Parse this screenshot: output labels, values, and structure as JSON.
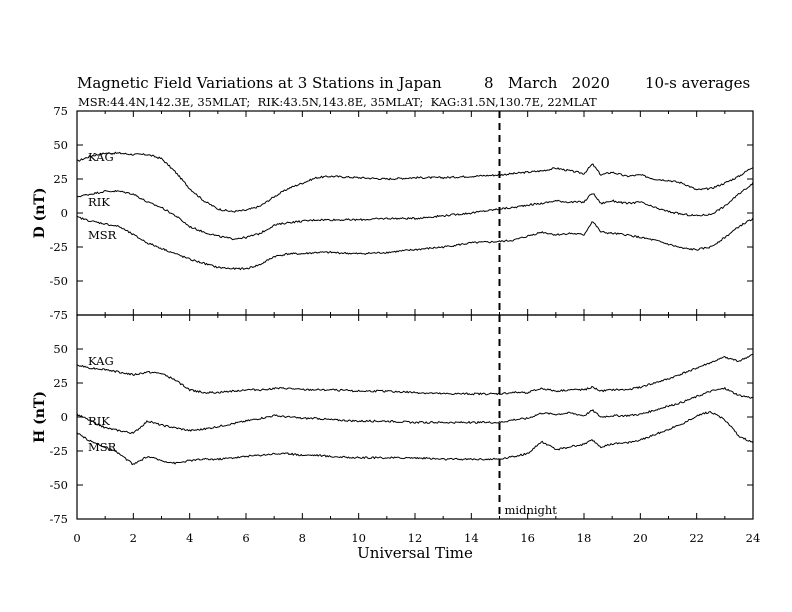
{
  "chart_data": {
    "type": "line",
    "title": "Magnetic Field Variations at 3 Stations in Japan",
    "date_text": "8   March   2020",
    "averaging": "10-s averages",
    "stations_text": "MSR:44.4N,142.3E, 35MLAT;  RIK:43.5N,143.8E, 35MLAT;  KAG:31.5N,130.7E, 22MLAT",
    "xlabel": "Universal Time",
    "xlim": [
      0,
      24
    ],
    "xticks": [
      0,
      2,
      4,
      6,
      8,
      10,
      12,
      14,
      16,
      18,
      20,
      22,
      24
    ],
    "midnight": {
      "x": 15,
      "label": "midnight"
    },
    "panels": [
      {
        "ylabel": "D (nT)",
        "ylim": [
          -75,
          75
        ],
        "yticks": [
          75,
          50,
          25,
          0,
          -25,
          -50,
          -75
        ],
        "series": [
          {
            "name": "KAG",
            "label_x": 0.25,
            "label_y": 41,
            "x": [
              0,
              0.5,
              1,
              1.5,
              2,
              2.5,
              3,
              3.5,
              4,
              4.5,
              5,
              5.5,
              6,
              6.5,
              7,
              7.5,
              8,
              8.5,
              9,
              10,
              11,
              12,
              13,
              14,
              15,
              15.5,
              16,
              16.5,
              17,
              17.5,
              18,
              18.3,
              18.6,
              19,
              19.5,
              20,
              20.5,
              21,
              21.5,
              22,
              22.5,
              23,
              23.5,
              24
            ],
            "y": [
              38,
              42,
              44,
              44,
              43,
              43,
              40,
              30,
              18,
              9,
              3,
              1,
              2,
              5,
              12,
              18,
              22,
              26,
              27,
              26,
              25,
              26,
              26,
              27,
              28,
              29,
              30,
              31,
              33,
              31,
              29,
              36,
              28,
              30,
              27,
              28,
              25,
              24,
              22,
              17,
              18,
              22,
              27,
              34
            ]
          },
          {
            "name": "RIK",
            "label_x": 0.25,
            "label_y": 8,
            "x": [
              0,
              0.5,
              1,
              1.5,
              2,
              2.5,
              3,
              3.5,
              4,
              4.5,
              5,
              5.5,
              6,
              6.5,
              7,
              7.5,
              8,
              8.5,
              9,
              10,
              11,
              12,
              13,
              14,
              15,
              15.5,
              16,
              16.5,
              17,
              17.5,
              18,
              18.3,
              18.6,
              19,
              19.5,
              20,
              20.5,
              21,
              21.5,
              22,
              22.5,
              23,
              23.5,
              24
            ],
            "y": [
              12,
              14,
              16,
              16,
              14,
              8,
              4,
              -2,
              -10,
              -14,
              -17,
              -19,
              -18,
              -15,
              -9,
              -7,
              -6,
              -5,
              -5,
              -5,
              -4,
              -4,
              -2,
              0,
              3,
              4,
              6,
              7,
              9,
              8,
              8,
              15,
              7,
              9,
              7,
              8,
              4,
              1,
              -1,
              -2,
              -1,
              5,
              14,
              22
            ]
          },
          {
            "name": "MSR",
            "label_x": 0.25,
            "label_y": -16,
            "x": [
              0,
              0.5,
              1,
              1.5,
              2,
              2.5,
              3,
              3.5,
              4,
              4.5,
              5,
              5.5,
              6,
              6.5,
              7,
              7.5,
              8,
              8.5,
              9,
              10,
              11,
              12,
              13,
              14,
              15,
              15.5,
              16,
              16.5,
              17,
              17.5,
              18,
              18.3,
              18.6,
              19,
              19.5,
              20,
              20.5,
              21,
              21.5,
              22,
              22.5,
              23,
              23.5,
              24
            ],
            "y": [
              -3,
              -6,
              -8,
              -10,
              -16,
              -22,
              -26,
              -30,
              -34,
              -37,
              -40,
              -41,
              -41,
              -38,
              -32,
              -30,
              -30,
              -29,
              -29,
              -30,
              -29,
              -27,
              -25,
              -22,
              -21,
              -20,
              -17,
              -14,
              -16,
              -15,
              -16,
              -6,
              -14,
              -15,
              -16,
              -18,
              -20,
              -23,
              -26,
              -27,
              -25,
              -18,
              -10,
              -4
            ]
          }
        ]
      },
      {
        "ylabel": "H (nT)",
        "ylim": [
          -75,
          75
        ],
        "yticks": [
          75,
          50,
          25,
          0,
          -25,
          -50,
          -75
        ],
        "series": [
          {
            "name": "KAG",
            "label_x": 0.25,
            "label_y": 41,
            "x": [
              0,
              0.5,
              1,
              1.5,
              2,
              2.5,
              3,
              3.5,
              4,
              4.5,
              5,
              5.5,
              6,
              6.5,
              7,
              7.5,
              8,
              8.5,
              9,
              10,
              11,
              12,
              13,
              14,
              15,
              15.5,
              16,
              16.5,
              17,
              17.5,
              18,
              18.3,
              18.6,
              19,
              19.5,
              20,
              20.5,
              21,
              21.5,
              22,
              22.5,
              23,
              23.5,
              24
            ],
            "y": [
              38,
              36,
              35,
              33,
              31,
              33,
              32,
              27,
              20,
              18,
              18,
              19,
              20,
              20,
              21,
              21,
              20,
              20,
              20,
              19,
              19,
              18,
              17,
              17,
              17,
              18,
              18,
              21,
              19,
              20,
              20,
              22,
              19,
              20,
              20,
              22,
              25,
              28,
              32,
              36,
              40,
              44,
              41,
              46
            ]
          },
          {
            "name": "RIK",
            "label_x": 0.25,
            "label_y": -3,
            "x": [
              0,
              0.5,
              1,
              1.5,
              2,
              2.5,
              3,
              3.5,
              4,
              4.5,
              5,
              5.5,
              6,
              6.5,
              7,
              7.5,
              8,
              8.5,
              9,
              10,
              11,
              12,
              13,
              14,
              15,
              15.5,
              16,
              16.5,
              17,
              17.5,
              18,
              18.3,
              18.6,
              19,
              19.5,
              20,
              20.5,
              21,
              21.5,
              22,
              22.5,
              23,
              23.5,
              24
            ],
            "y": [
              2,
              -3,
              -8,
              -10,
              -12,
              -3,
              -6,
              -8,
              -10,
              -9,
              -7,
              -5,
              -3,
              -1,
              1,
              0,
              -1,
              -1,
              -2,
              -3,
              -3,
              -4,
              -4,
              -4,
              -4,
              -2,
              -1,
              3,
              2,
              3,
              1,
              5,
              0,
              1,
              1,
              2,
              5,
              8,
              11,
              15,
              19,
              21,
              16,
              14
            ]
          },
          {
            "name": "MSR",
            "label_x": 0.25,
            "label_y": -22,
            "x": [
              0,
              0.5,
              1,
              1.5,
              2,
              2.5,
              3,
              3.5,
              4,
              4.5,
              5,
              5.5,
              6,
              6.5,
              7,
              7.5,
              8,
              8.5,
              9,
              10,
              11,
              12,
              13,
              14,
              15,
              15.5,
              16,
              16.5,
              17,
              17.5,
              18,
              18.3,
              18.6,
              19,
              19.5,
              20,
              20.5,
              21,
              21.5,
              22,
              22.5,
              23,
              23.5,
              24
            ],
            "y": [
              -12,
              -18,
              -22,
              -27,
              -35,
              -29,
              -32,
              -34,
              -32,
              -31,
              -31,
              -30,
              -29,
              -28,
              -27,
              -27,
              -28,
              -28,
              -29,
              -30,
              -30,
              -30,
              -31,
              -31,
              -31,
              -29,
              -27,
              -18,
              -24,
              -22,
              -20,
              -17,
              -22,
              -20,
              -19,
              -17,
              -13,
              -9,
              -5,
              1,
              4,
              -2,
              -14,
              -19
            ]
          }
        ]
      }
    ]
  }
}
